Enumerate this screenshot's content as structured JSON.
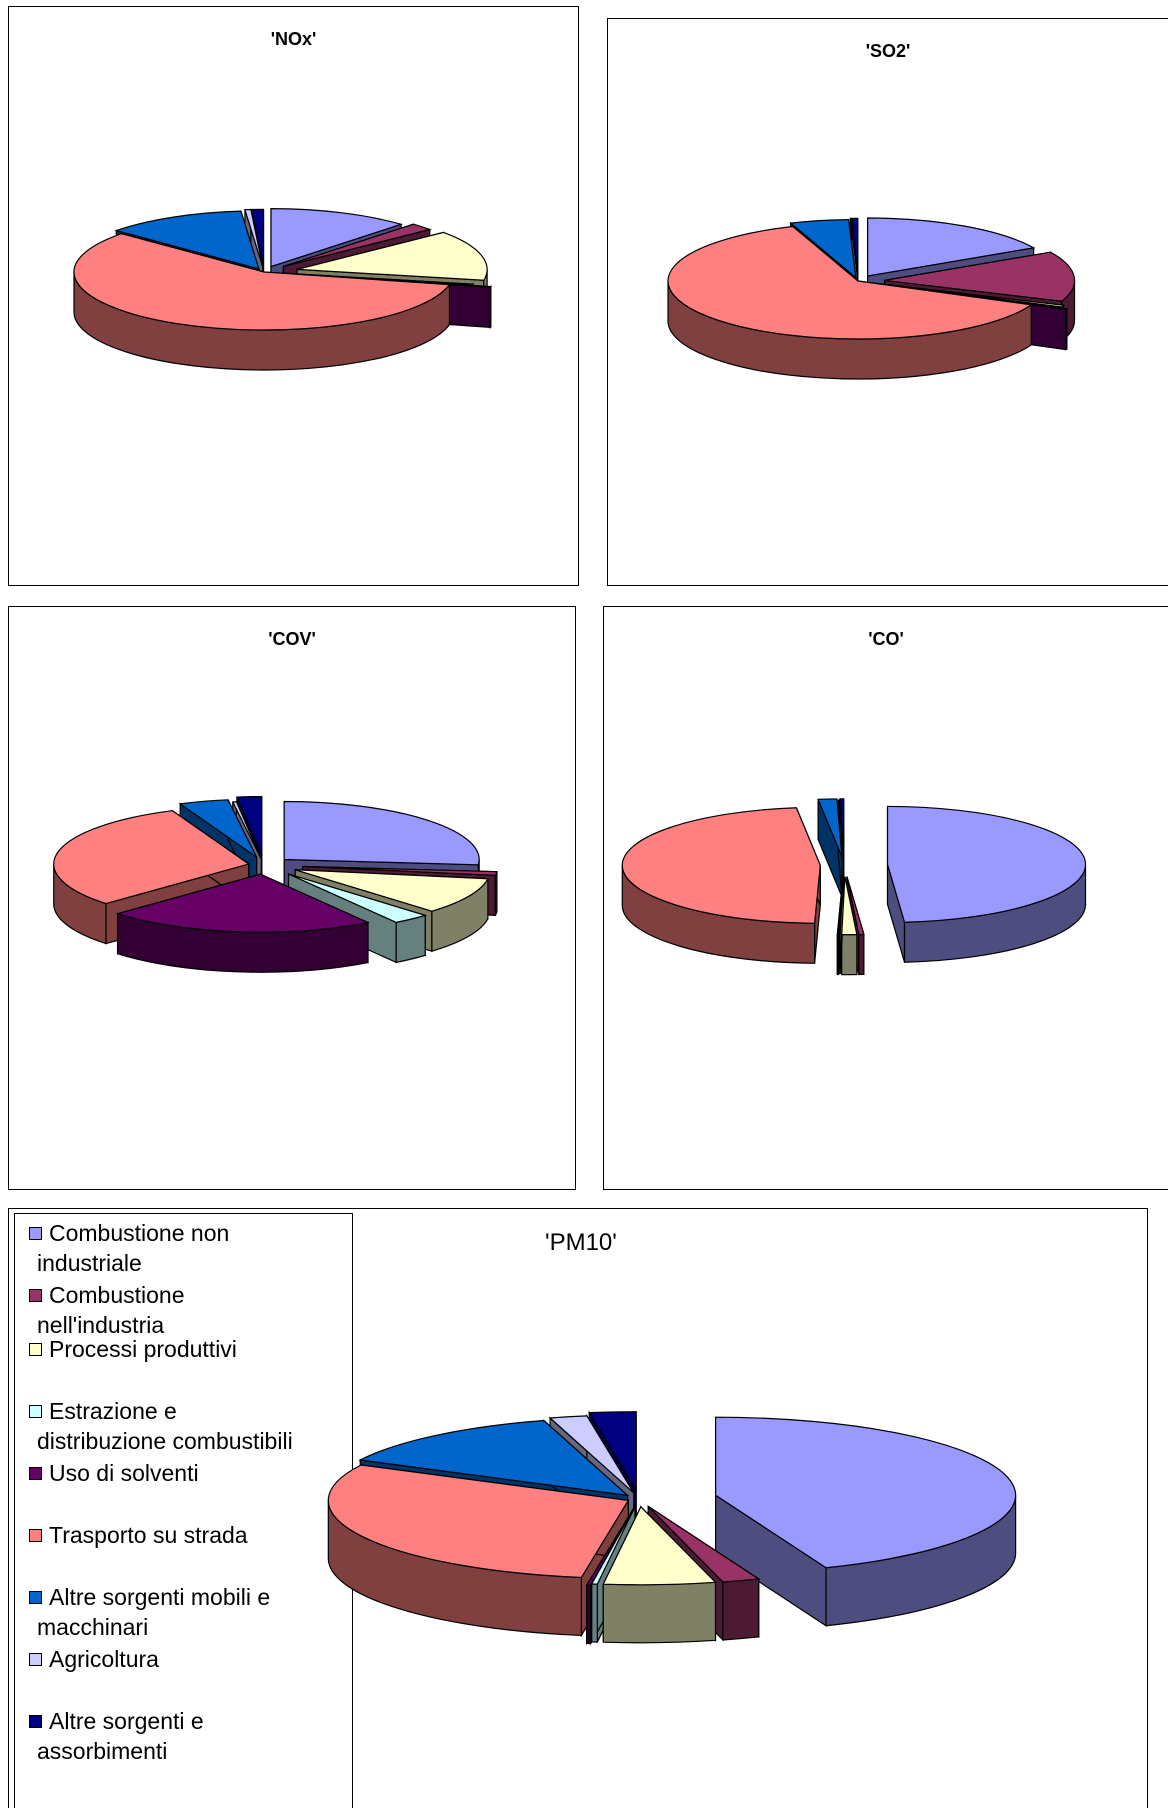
{
  "palette": {
    "top": [
      "#9999ff",
      "#993366",
      "#ffffcc",
      "#ccffff",
      "#660066",
      "#ff8080",
      "#0066cc",
      "#ccccff",
      "#000080"
    ],
    "side": [
      "#4d4d80",
      "#4d1a33",
      "#808066",
      "#668080",
      "#330033",
      "#804040",
      "#003366",
      "#666680",
      "#000040"
    ]
  },
  "legend": {
    "items": [
      {
        "line1": "Combustione non",
        "line2": "industriale"
      },
      {
        "line1": "Combustione",
        "line2": "nell'industria"
      },
      {
        "line1": "Processi produttivi",
        "line2": ""
      },
      {
        "line1": "Estrazione e",
        "line2": "distribuzione combustibili"
      },
      {
        "line1": "Uso di solventi",
        "line2": ""
      },
      {
        "line1": "Trasporto su strada",
        "line2": ""
      },
      {
        "line1": "Altre sorgenti mobili e",
        "line2": "macchinari"
      },
      {
        "line1": "Agricoltura",
        "line2": ""
      },
      {
        "line1": "Altre sorgenti e",
        "line2": "assorbimenti"
      }
    ]
  },
  "chart_data": [
    {
      "type": "pie",
      "title": "'NOx'",
      "labels": [
        "Combustione non industriale",
        "Combustione nell'industria",
        "Processi produttivi",
        "Estrazione e distribuzione combustibili",
        "Uso di solventi",
        "Trasporto su strada",
        "Altre sorgenti mobili e macchinari",
        "Agricoltura",
        "Altre sorgenti e assorbimenti"
      ],
      "values": [
        12,
        2,
        14,
        0.3,
        0.2,
        58,
        12,
        0.5,
        1
      ]
    },
    {
      "type": "pie",
      "title": "'SO2'",
      "labels": [
        "Combustione non industriale",
        "Combustione nell'industria",
        "Processi produttivi",
        "Estrazione e distribuzione combustibili",
        "Uso di solventi",
        "Trasporto su strada",
        "Altre sorgenti mobili e macchinari",
        "Agricoltura",
        "Altre sorgenti e assorbimenti"
      ],
      "values": [
        17,
        14,
        0.5,
        0.2,
        0.2,
        63,
        5,
        0.1,
        0.5
      ]
    },
    {
      "type": "pie",
      "title": "'COV'",
      "labels": [
        "Combustione non industriale",
        "Combustione nell'industria",
        "Processi produttivi",
        "Estrazione e distribuzione combustibili",
        "Uso di solventi",
        "Trasporto su strada",
        "Altre sorgenti mobili e macchinari",
        "Agricoltura",
        "Altre sorgenti e assorbimenti"
      ],
      "values": [
        26,
        1,
        10,
        3,
        22,
        30,
        4,
        0.3,
        2
      ]
    },
    {
      "type": "pie",
      "title": "'CO'",
      "labels": [
        "Combustione non industriale",
        "Combustione nell'industria",
        "Processi produttivi",
        "Estrazione e distribuzione combustibili",
        "Uso di solventi",
        "Trasporto su strada",
        "Altre sorgenti mobili e macchinari",
        "Agricoltura",
        "Altre sorgenti e assorbimenti"
      ],
      "values": [
        48,
        0.4,
        1.2,
        0.1,
        0.1,
        47,
        1.5,
        0.1,
        0.3
      ]
    },
    {
      "type": "pie",
      "title": "'PM10'",
      "labels": [
        "Combustione non industriale",
        "Combustione nell'industria",
        "Processi produttivi",
        "Estrazione e distribuzione combustibili",
        "Uso di solventi",
        "Trasporto su strada",
        "Altre sorgenti mobili e macchinari",
        "Agricoltura",
        "Altre sorgenti e assorbimenti"
      ],
      "values": [
        44,
        2,
        6,
        0.3,
        0.2,
        30,
        13,
        2,
        2.5
      ]
    }
  ]
}
